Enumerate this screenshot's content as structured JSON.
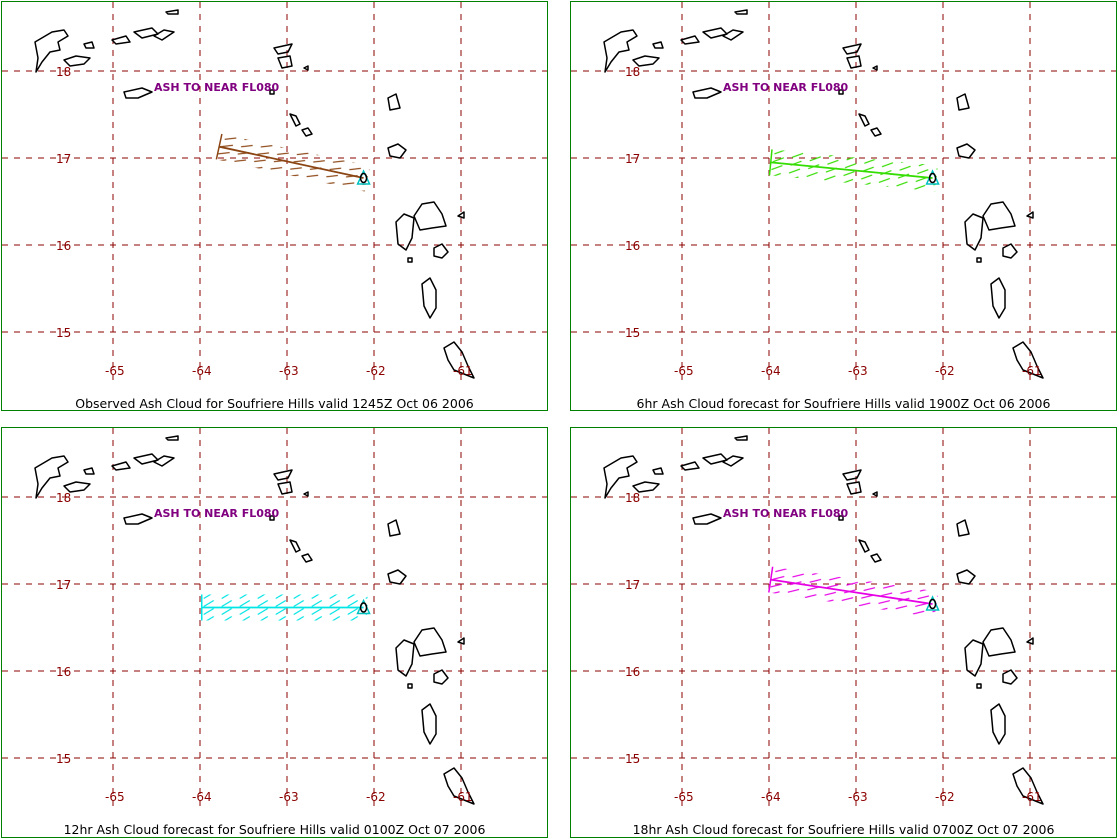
{
  "map": {
    "lon_labels": [
      "-65",
      "-64",
      "-63",
      "-62",
      "-61"
    ],
    "lat_labels": [
      "18",
      "17",
      "16",
      "15"
    ],
    "annotation": "ASH TO NEAR FL080",
    "grid_color": "#8b0000",
    "coast_color": "#000000",
    "border_color": "#008000",
    "volcano_color": "#00c0c0"
  },
  "panels": [
    {
      "caption": "Observed Ash Cloud for Soufriere  Hills valid 1245Z Oct 06 2006",
      "color": "#8b4513",
      "axis_line": [
        [
          -63.78,
          17.13
        ],
        [
          -62.12,
          16.77
        ]
      ]
    },
    {
      "caption": "6hr Ash Cloud forecast for Soufriere  Hills valid 1900Z Oct 06 2006",
      "color": "#33dd00",
      "axis_line": [
        [
          -63.98,
          16.95
        ],
        [
          -62.12,
          16.77
        ]
      ]
    },
    {
      "caption": "12hr Ash Cloud forecast for Soufriere  Hills valid 0100Z Oct 07 2006",
      "color": "#00e5e5",
      "axis_line": [
        [
          -63.98,
          16.73
        ],
        [
          -62.12,
          16.73
        ]
      ]
    },
    {
      "caption": "18hr Ash Cloud forecast for Soufriere  Hills valid 0700Z Oct 07 2006",
      "color": "#e600e6",
      "axis_line": [
        [
          -63.98,
          17.05
        ],
        [
          -62.12,
          16.77
        ]
      ]
    }
  ]
}
